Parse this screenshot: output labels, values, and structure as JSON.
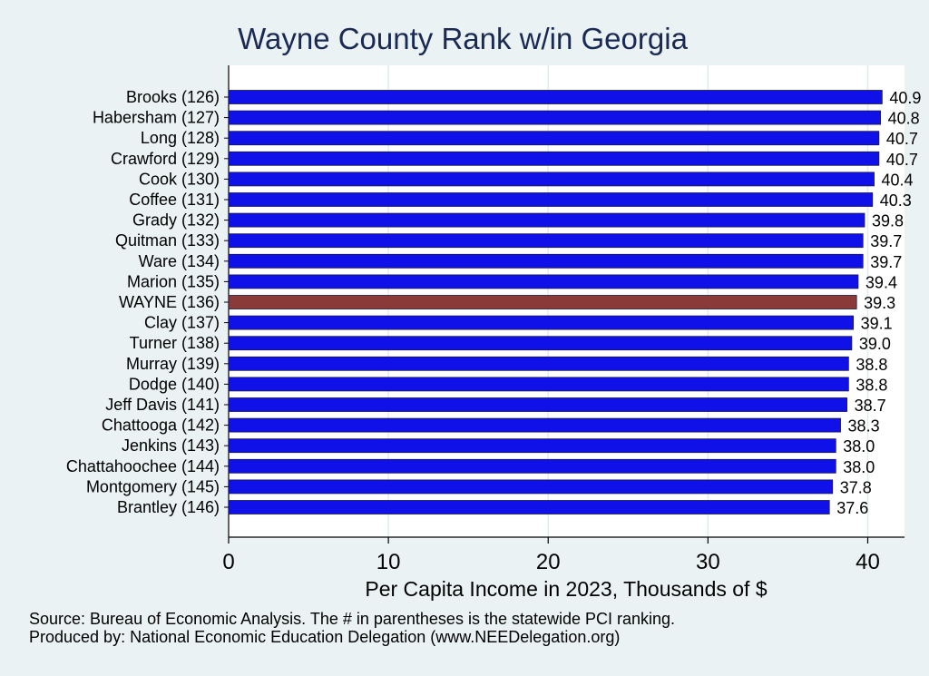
{
  "chart_data": {
    "type": "bar",
    "orientation": "horizontal",
    "title": "Wayne County Rank w/in Georgia",
    "xlabel": "Per Capita Income in 2023, Thousands of $",
    "ylabel": "",
    "xlim": [
      0,
      42.3
    ],
    "xticks": [
      0,
      10,
      20,
      30,
      40
    ],
    "grid": true,
    "categories": [
      "Brooks (126)",
      "Habersham (127)",
      "Long (128)",
      "Crawford (129)",
      "Cook (130)",
      "Coffee (131)",
      "Grady (132)",
      "Quitman (133)",
      "Ware (134)",
      "Marion (135)",
      "WAYNE (136)",
      "Clay (137)",
      "Turner (138)",
      "Murray (139)",
      "Dodge (140)",
      "Jeff Davis (141)",
      "Chattooga (142)",
      "Jenkins (143)",
      "Chattahoochee (144)",
      "Montgomery (145)",
      "Brantley (146)"
    ],
    "values": [
      40.9,
      40.8,
      40.7,
      40.7,
      40.4,
      40.3,
      39.8,
      39.7,
      39.7,
      39.4,
      39.3,
      39.1,
      39.0,
      38.8,
      38.8,
      38.7,
      38.3,
      38.0,
      38.0,
      37.8,
      37.6
    ],
    "value_labels": [
      "40.9",
      "40.8",
      "40.7",
      "40.7",
      "40.4",
      "40.3",
      "39.8",
      "39.7",
      "39.7",
      "39.4",
      "39.3",
      "39.1",
      "39.0",
      "38.8",
      "38.8",
      "38.7",
      "38.3",
      "38.0",
      "38.0",
      "37.8",
      "37.6"
    ],
    "highlight": "WAYNE (136)",
    "colors": {
      "bar": "#1010e8",
      "highlight": "#8b3a3a",
      "background": "#eaf2f3",
      "plot_bg": "#ffffff",
      "title": "#1a2a55"
    }
  },
  "footer": {
    "source": "Source: Bureau of Economic Analysis. The # in parentheses is the statewide PCI ranking.",
    "produced": "Produced by: National Economic Education Delegation (www.NEEDelegation.org)"
  }
}
